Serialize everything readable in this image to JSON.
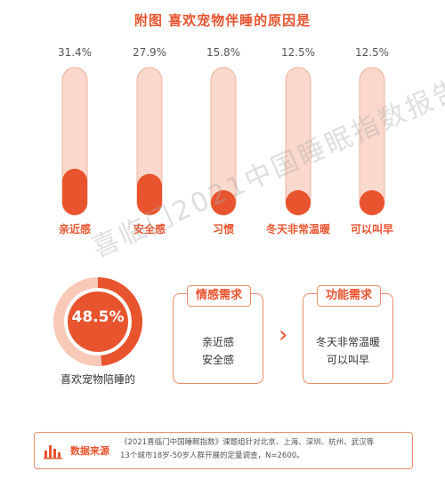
{
  "title": "附图 喜欢宠物伴睡的原因是",
  "chart_data": {
    "type": "bar",
    "categories": [
      "亲近感",
      "安全感",
      "习惯",
      "冬天非常温暖",
      "可以叫早"
    ],
    "values": [
      31.4,
      27.9,
      15.8,
      12.5,
      12.5
    ],
    "value_labels": [
      "31.4%",
      "27.9%",
      "15.8%",
      "12.5%",
      "12.5%"
    ],
    "title": "附图 喜欢宠物伴睡的原因是",
    "xlabel": "",
    "ylabel": "",
    "ylim": [
      0,
      100
    ],
    "grid": false,
    "legend": "none"
  },
  "watermark": "喜临门2021中国睡眠指数报告",
  "summary": {
    "percent": 48.5,
    "percent_label": "48.5%",
    "caption": "喜欢宠物陪睡的"
  },
  "emotional": {
    "title": "情感需求",
    "items": [
      "亲近感",
      "安全感"
    ]
  },
  "functional": {
    "title": "功能需求",
    "items": [
      "冬天非常温暖",
      "可以叫早"
    ]
  },
  "arrow_glyph": "›",
  "source": {
    "label": "数据来源",
    "text_line1": "《2021喜临门中国睡眠指数》课题组针对北京、上海、深圳、杭州、武汉等",
    "text_line2": "13个城市18岁-50岁人群开展的定量调查，N=2600。",
    "icon": "bar-chart-icon"
  },
  "colors": {
    "accent": "#E8542E",
    "track": "#FAD8CC",
    "track_stroke": "#F3B29B",
    "donut_light": "#F9C9B8"
  }
}
